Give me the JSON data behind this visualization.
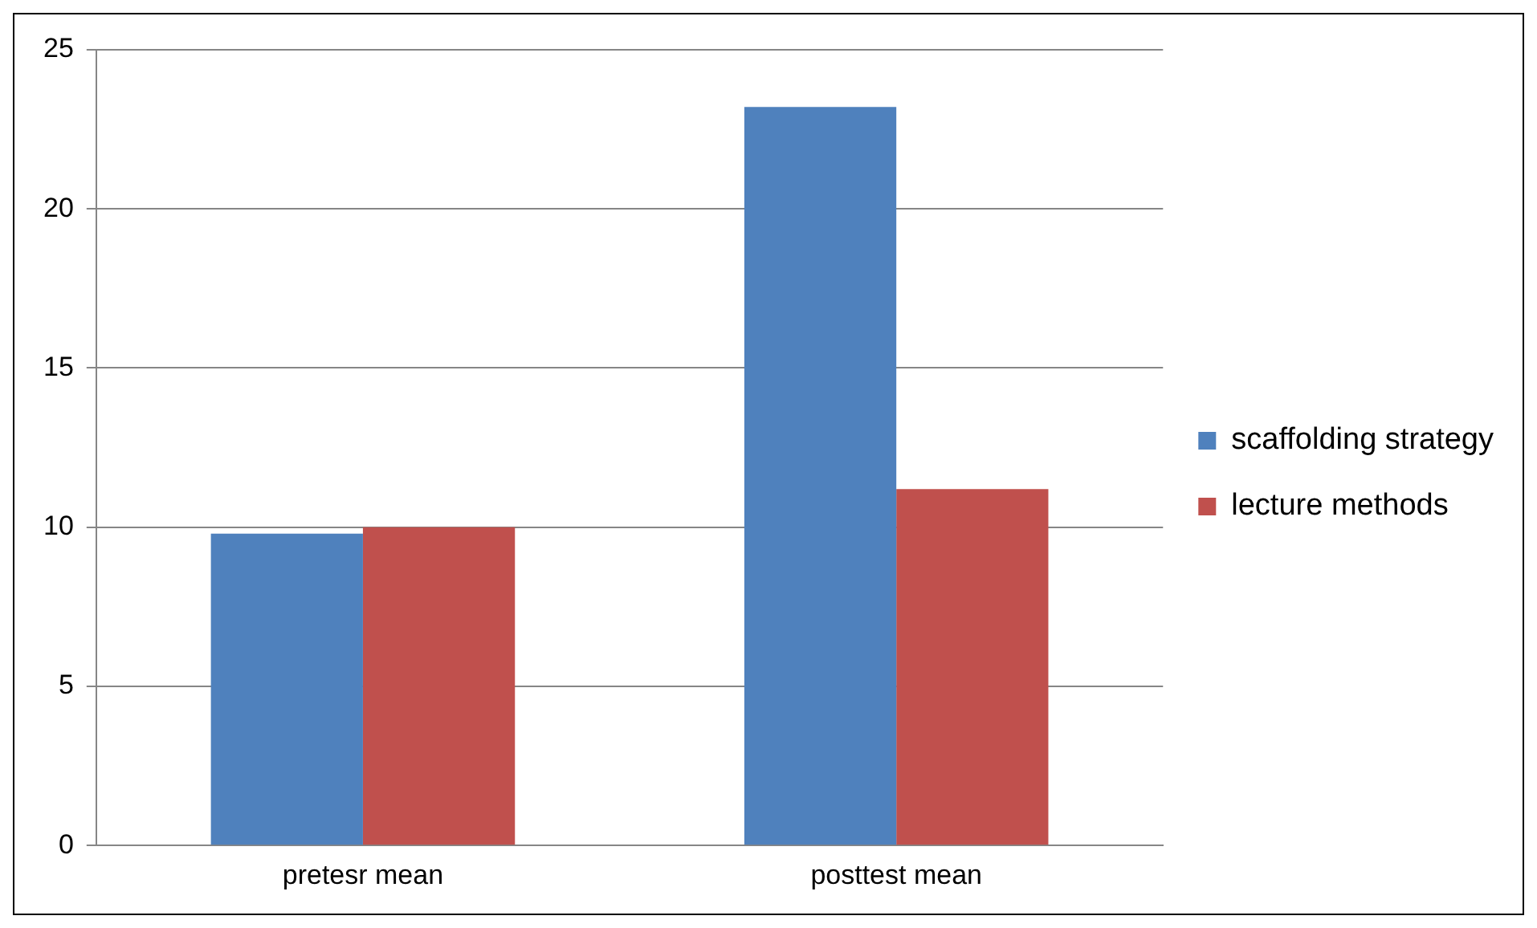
{
  "chart_data": {
    "type": "bar",
    "categories": [
      "pretesr mean",
      "posttest mean"
    ],
    "series": [
      {
        "name": "scaffolding strategy",
        "color": "#4f81bd",
        "values": [
          9.8,
          23.2
        ]
      },
      {
        "name": "lecture methods",
        "color": "#c0504d",
        "values": [
          10,
          11.2
        ]
      }
    ],
    "ylim": [
      0,
      25
    ],
    "yticks": [
      0,
      5,
      10,
      15,
      20,
      25
    ],
    "grid": "y",
    "legend": "right"
  }
}
